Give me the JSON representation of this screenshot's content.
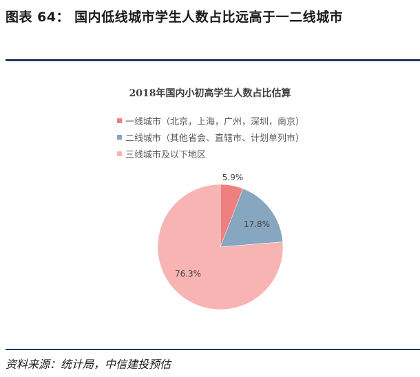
{
  "figure": {
    "title": "图表 64：  国内低线城市学生人数占比远高于一二线城市",
    "source": "资料来源：统计局，中信建投预估"
  },
  "chart_data": {
    "type": "pie",
    "title": "2018年国内小初高学生人数占比估算",
    "legend_position": "top-left",
    "slices": [
      {
        "label": "一线城市（北京，上海，广州，深圳，南京）",
        "value": 5.9,
        "value_label": "5.9%",
        "color": "#f07f7f"
      },
      {
        "label": "二线城市（其他省会、直辖市、计划单列市）",
        "value": 17.8,
        "value_label": "17.8%",
        "color": "#87a6bf"
      },
      {
        "label": "三线城市及以下地区",
        "value": 76.3,
        "value_label": "76.3%",
        "color": "#f8b4b3"
      }
    ]
  }
}
